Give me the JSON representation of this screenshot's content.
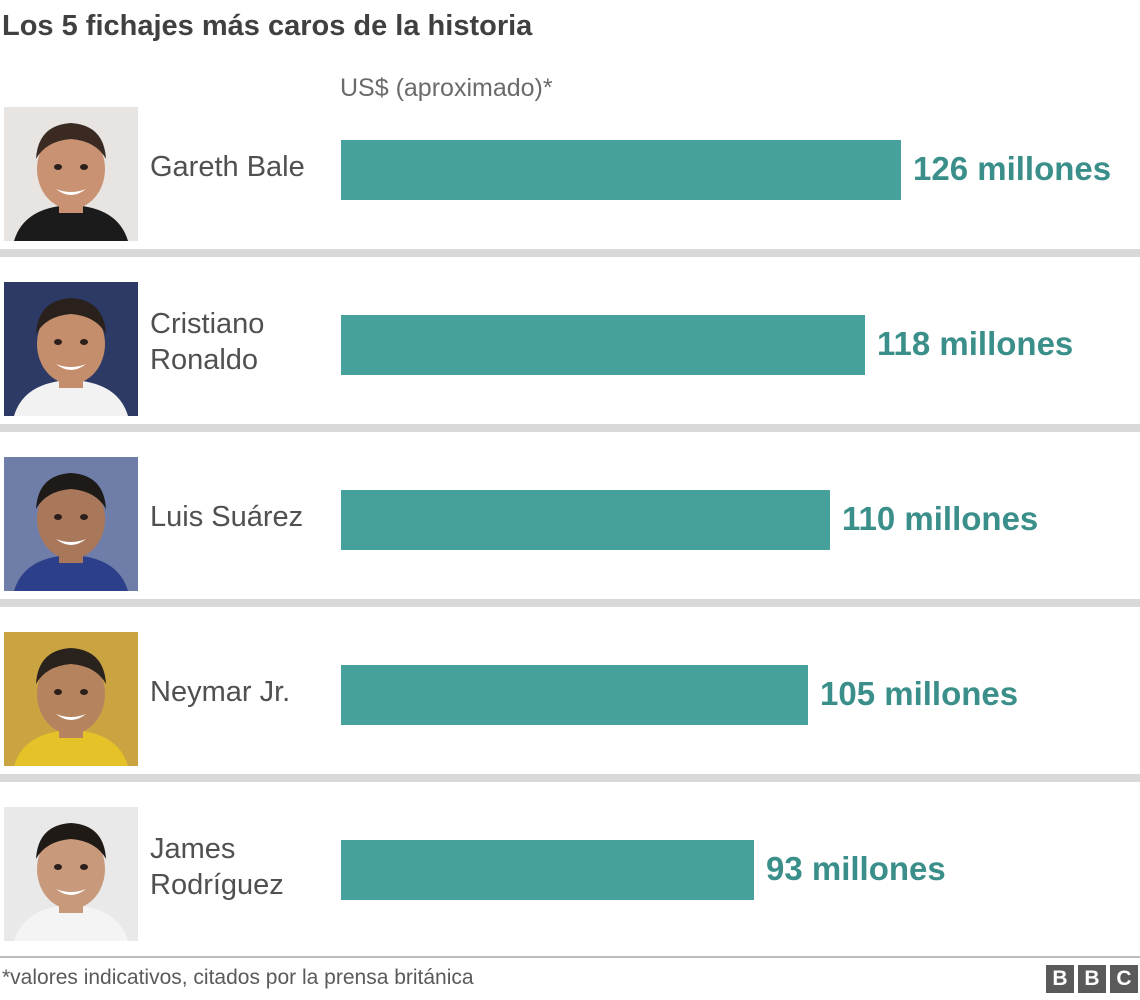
{
  "chart_data": {
    "type": "bar",
    "orientation": "horizontal",
    "title": "Los 5 fichajes más caros de la historia",
    "unit_label": "US$ (aproximado)*",
    "categories": [
      [
        "Gareth Bale"
      ],
      [
        "Cristiano",
        "Ronaldo"
      ],
      [
        "Luis Suárez"
      ],
      [
        "Neymar Jr."
      ],
      [
        "James",
        "Rodríguez"
      ]
    ],
    "values": [
      126,
      118,
      110,
      105,
      93
    ],
    "value_labels": [
      "126 millones",
      "118 millones",
      "110 millones",
      "105 millones",
      "93 millones"
    ],
    "bar_color": "#46a19d",
    "label_color": "#3b8f8a",
    "grid": false,
    "legend": "none"
  },
  "footer": {
    "note": "*valores indicativos, citados por la prensa británica",
    "logo_letters": [
      "B",
      "B",
      "C"
    ]
  }
}
